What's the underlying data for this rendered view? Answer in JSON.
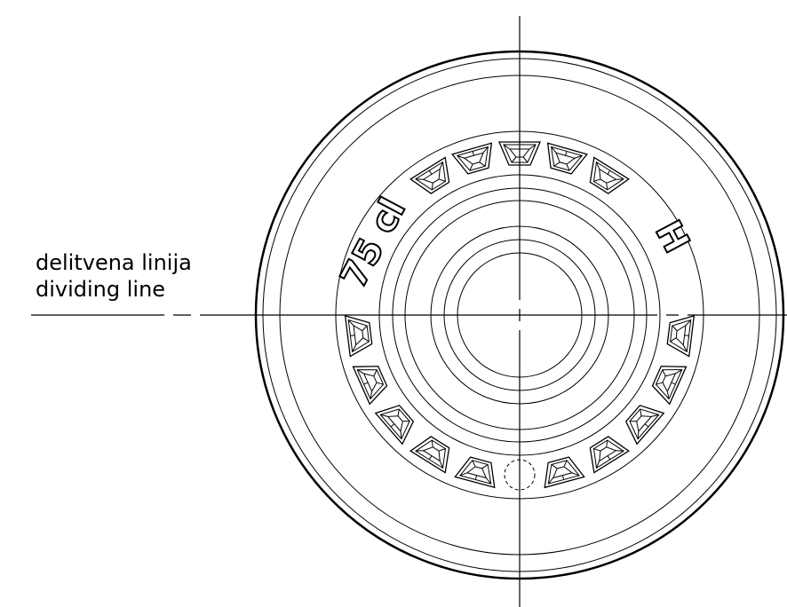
{
  "labels": {
    "dividing_line_si": "delitvena linija",
    "dividing_line_en": "dividing line"
  },
  "embossing": {
    "capacity": "75 cl",
    "code": "H"
  }
}
